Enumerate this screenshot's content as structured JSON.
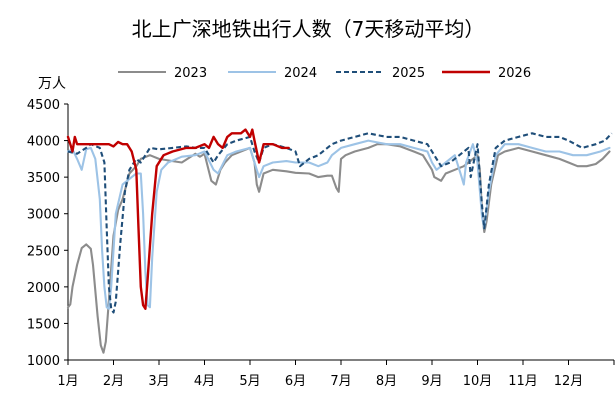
{
  "chart_data": {
    "type": "line",
    "title": "北上广深地铁出行人数（7天移动平均）",
    "ylabel": "万人",
    "xlabel": "",
    "ylim": [
      1000,
      4500
    ],
    "yticks": [
      "4500",
      "4000",
      "3500",
      "3000",
      "2500",
      "2000",
      "1500",
      "1000"
    ],
    "xlim": [
      1,
      13
    ],
    "months": [
      "1月",
      "2月",
      "3月",
      "4月",
      "5月",
      "6月",
      "7月",
      "8月",
      "9月",
      "10月",
      "11月",
      "12月"
    ],
    "grid": false,
    "legend_position": "top",
    "series": [
      {
        "name": "2023",
        "color": "#8c8c8c",
        "dash": "solid",
        "points": [
          [
            1.0,
            1720
          ],
          [
            1.05,
            1760
          ],
          [
            1.1,
            2000
          ],
          [
            1.2,
            2300
          ],
          [
            1.3,
            2530
          ],
          [
            1.4,
            2580
          ],
          [
            1.5,
            2520
          ],
          [
            1.55,
            2300
          ],
          [
            1.65,
            1600
          ],
          [
            1.72,
            1200
          ],
          [
            1.78,
            1100
          ],
          [
            1.83,
            1250
          ],
          [
            1.92,
            2000
          ],
          [
            2.0,
            2700
          ],
          [
            2.1,
            3050
          ],
          [
            2.2,
            3200
          ],
          [
            2.35,
            3550
          ],
          [
            2.5,
            3650
          ],
          [
            2.6,
            3750
          ],
          [
            2.8,
            3800
          ],
          [
            3.0,
            3750
          ],
          [
            3.3,
            3720
          ],
          [
            3.5,
            3700
          ],
          [
            3.8,
            3820
          ],
          [
            3.9,
            3780
          ],
          [
            4.0,
            3820
          ],
          [
            4.15,
            3450
          ],
          [
            4.25,
            3400
          ],
          [
            4.35,
            3600
          ],
          [
            4.45,
            3700
          ],
          [
            4.6,
            3800
          ],
          [
            4.8,
            3850
          ],
          [
            5.0,
            3900
          ],
          [
            5.1,
            3700
          ],
          [
            5.15,
            3400
          ],
          [
            5.2,
            3300
          ],
          [
            5.3,
            3550
          ],
          [
            5.5,
            3600
          ],
          [
            5.8,
            3580
          ],
          [
            6.0,
            3560
          ],
          [
            6.3,
            3550
          ],
          [
            6.5,
            3500
          ],
          [
            6.7,
            3520
          ],
          [
            6.8,
            3520
          ],
          [
            6.9,
            3350
          ],
          [
            6.95,
            3300
          ],
          [
            7.0,
            3750
          ],
          [
            7.1,
            3800
          ],
          [
            7.3,
            3850
          ],
          [
            7.6,
            3900
          ],
          [
            7.8,
            3950
          ],
          [
            8.0,
            3950
          ],
          [
            8.3,
            3920
          ],
          [
            8.6,
            3850
          ],
          [
            8.8,
            3800
          ],
          [
            9.0,
            3600
          ],
          [
            9.05,
            3500
          ],
          [
            9.2,
            3450
          ],
          [
            9.3,
            3550
          ],
          [
            9.5,
            3600
          ],
          [
            9.7,
            3650
          ],
          [
            9.8,
            3700
          ],
          [
            9.9,
            3750
          ],
          [
            10.0,
            3800
          ],
          [
            10.05,
            3600
          ],
          [
            10.1,
            3000
          ],
          [
            10.15,
            2750
          ],
          [
            10.2,
            2900
          ],
          [
            10.3,
            3400
          ],
          [
            10.45,
            3800
          ],
          [
            10.6,
            3850
          ],
          [
            10.9,
            3900
          ],
          [
            11.2,
            3850
          ],
          [
            11.5,
            3800
          ],
          [
            11.8,
            3750
          ],
          [
            12.0,
            3700
          ],
          [
            12.2,
            3650
          ],
          [
            12.4,
            3650
          ],
          [
            12.6,
            3680
          ],
          [
            12.75,
            3750
          ],
          [
            12.9,
            3850
          ]
        ]
      },
      {
        "name": "2024",
        "color": "#9dc3e6",
        "dash": "solid",
        "points": [
          [
            1.0,
            3850
          ],
          [
            1.1,
            3880
          ],
          [
            1.2,
            3750
          ],
          [
            1.3,
            3600
          ],
          [
            1.4,
            3880
          ],
          [
            1.5,
            3900
          ],
          [
            1.6,
            3750
          ],
          [
            1.7,
            3200
          ],
          [
            1.75,
            2500
          ],
          [
            1.8,
            2000
          ],
          [
            1.85,
            1720
          ],
          [
            1.9,
            1700
          ],
          [
            1.95,
            2000
          ],
          [
            2.05,
            3000
          ],
          [
            2.2,
            3400
          ],
          [
            2.4,
            3500
          ],
          [
            2.5,
            3550
          ],
          [
            2.6,
            3550
          ],
          [
            2.65,
            3000
          ],
          [
            2.7,
            2200
          ],
          [
            2.75,
            1750
          ],
          [
            2.8,
            1720
          ],
          [
            2.85,
            2400
          ],
          [
            2.95,
            3300
          ],
          [
            3.05,
            3600
          ],
          [
            3.2,
            3700
          ],
          [
            3.5,
            3780
          ],
          [
            3.8,
            3800
          ],
          [
            4.0,
            3850
          ],
          [
            4.2,
            3600
          ],
          [
            4.3,
            3550
          ],
          [
            4.5,
            3800
          ],
          [
            4.7,
            3850
          ],
          [
            5.0,
            3900
          ],
          [
            5.1,
            3700
          ],
          [
            5.2,
            3500
          ],
          [
            5.3,
            3650
          ],
          [
            5.5,
            3700
          ],
          [
            5.8,
            3720
          ],
          [
            6.0,
            3700
          ],
          [
            6.3,
            3700
          ],
          [
            6.5,
            3650
          ],
          [
            6.7,
            3700
          ],
          [
            6.8,
            3800
          ],
          [
            7.0,
            3900
          ],
          [
            7.3,
            3950
          ],
          [
            7.6,
            4000
          ],
          [
            8.0,
            3950
          ],
          [
            8.3,
            3950
          ],
          [
            8.6,
            3900
          ],
          [
            8.9,
            3850
          ],
          [
            9.0,
            3700
          ],
          [
            9.1,
            3600
          ],
          [
            9.3,
            3700
          ],
          [
            9.5,
            3800
          ],
          [
            9.65,
            3500
          ],
          [
            9.7,
            3400
          ],
          [
            9.75,
            3700
          ],
          [
            9.9,
            3950
          ],
          [
            10.0,
            3700
          ],
          [
            10.1,
            2950
          ],
          [
            10.15,
            2800
          ],
          [
            10.25,
            3300
          ],
          [
            10.4,
            3800
          ],
          [
            10.6,
            3950
          ],
          [
            10.9,
            3950
          ],
          [
            11.2,
            3900
          ],
          [
            11.5,
            3850
          ],
          [
            11.8,
            3850
          ],
          [
            12.1,
            3800
          ],
          [
            12.4,
            3800
          ],
          [
            12.7,
            3850
          ],
          [
            12.9,
            3900
          ]
        ]
      },
      {
        "name": "2025",
        "color": "#1f4e79",
        "dash": "dashed",
        "points": [
          [
            1.0,
            3850
          ],
          [
            1.2,
            3820
          ],
          [
            1.4,
            3900
          ],
          [
            1.5,
            3950
          ],
          [
            1.7,
            3900
          ],
          [
            1.8,
            3700
          ],
          [
            1.85,
            2800
          ],
          [
            1.9,
            2000
          ],
          [
            1.95,
            1700
          ],
          [
            2.0,
            1650
          ],
          [
            2.05,
            1800
          ],
          [
            2.15,
            2600
          ],
          [
            2.25,
            3300
          ],
          [
            2.35,
            3600
          ],
          [
            2.5,
            3750
          ],
          [
            2.6,
            3700
          ],
          [
            2.7,
            3800
          ],
          [
            2.8,
            3900
          ],
          [
            3.0,
            3880
          ],
          [
            3.3,
            3900
          ],
          [
            3.6,
            3920
          ],
          [
            3.8,
            3900
          ],
          [
            4.0,
            3900
          ],
          [
            4.2,
            3700
          ],
          [
            4.3,
            3800
          ],
          [
            4.5,
            3950
          ],
          [
            4.7,
            4000
          ],
          [
            5.0,
            4050
          ],
          [
            5.1,
            3850
          ],
          [
            5.2,
            3700
          ],
          [
            5.3,
            3900
          ],
          [
            5.5,
            3950
          ],
          [
            5.8,
            3900
          ],
          [
            6.0,
            3850
          ],
          [
            6.1,
            3650
          ],
          [
            6.3,
            3750
          ],
          [
            6.5,
            3800
          ],
          [
            6.8,
            3950
          ],
          [
            7.0,
            4000
          ],
          [
            7.3,
            4050
          ],
          [
            7.6,
            4100
          ],
          [
            8.0,
            4050
          ],
          [
            8.3,
            4050
          ],
          [
            8.6,
            4000
          ],
          [
            8.9,
            3950
          ],
          [
            9.0,
            3850
          ],
          [
            9.2,
            3650
          ],
          [
            9.4,
            3700
          ],
          [
            9.6,
            3800
          ],
          [
            9.8,
            3900
          ],
          [
            9.85,
            3500
          ],
          [
            9.9,
            3650
          ],
          [
            10.0,
            3950
          ],
          [
            10.1,
            3100
          ],
          [
            10.15,
            2800
          ],
          [
            10.25,
            3400
          ],
          [
            10.4,
            3900
          ],
          [
            10.6,
            4000
          ],
          [
            10.9,
            4050
          ],
          [
            11.2,
            4100
          ],
          [
            11.5,
            4050
          ],
          [
            11.8,
            4050
          ],
          [
            12.0,
            4000
          ],
          [
            12.3,
            3900
          ],
          [
            12.6,
            3950
          ],
          [
            12.8,
            4000
          ],
          [
            12.95,
            4100
          ]
        ]
      },
      {
        "name": "2026",
        "color": "#c00000",
        "dash": "solid",
        "points": [
          [
            1.0,
            4050
          ],
          [
            1.05,
            3950
          ],
          [
            1.1,
            3850
          ],
          [
            1.15,
            4050
          ],
          [
            1.2,
            3950
          ],
          [
            1.3,
            3950
          ],
          [
            1.5,
            3950
          ],
          [
            1.8,
            3950
          ],
          [
            1.9,
            3950
          ],
          [
            2.0,
            3920
          ],
          [
            2.1,
            3980
          ],
          [
            2.2,
            3950
          ],
          [
            2.3,
            3950
          ],
          [
            2.4,
            3850
          ],
          [
            2.5,
            3600
          ],
          [
            2.55,
            2800
          ],
          [
            2.6,
            2000
          ],
          [
            2.65,
            1750
          ],
          [
            2.7,
            1700
          ],
          [
            2.75,
            2100
          ],
          [
            2.85,
            3000
          ],
          [
            2.95,
            3650
          ],
          [
            3.1,
            3800
          ],
          [
            3.3,
            3850
          ],
          [
            3.6,
            3900
          ],
          [
            3.8,
            3900
          ],
          [
            4.0,
            3950
          ],
          [
            4.1,
            3900
          ],
          [
            4.2,
            4050
          ],
          [
            4.3,
            3950
          ],
          [
            4.4,
            3900
          ],
          [
            4.5,
            4050
          ],
          [
            4.6,
            4100
          ],
          [
            4.8,
            4100
          ],
          [
            4.9,
            4150
          ],
          [
            5.0,
            4050
          ],
          [
            5.05,
            4150
          ],
          [
            5.1,
            4000
          ],
          [
            5.2,
            3700
          ],
          [
            5.3,
            3950
          ],
          [
            5.5,
            3950
          ],
          [
            5.7,
            3900
          ],
          [
            5.85,
            3900
          ]
        ]
      }
    ]
  }
}
